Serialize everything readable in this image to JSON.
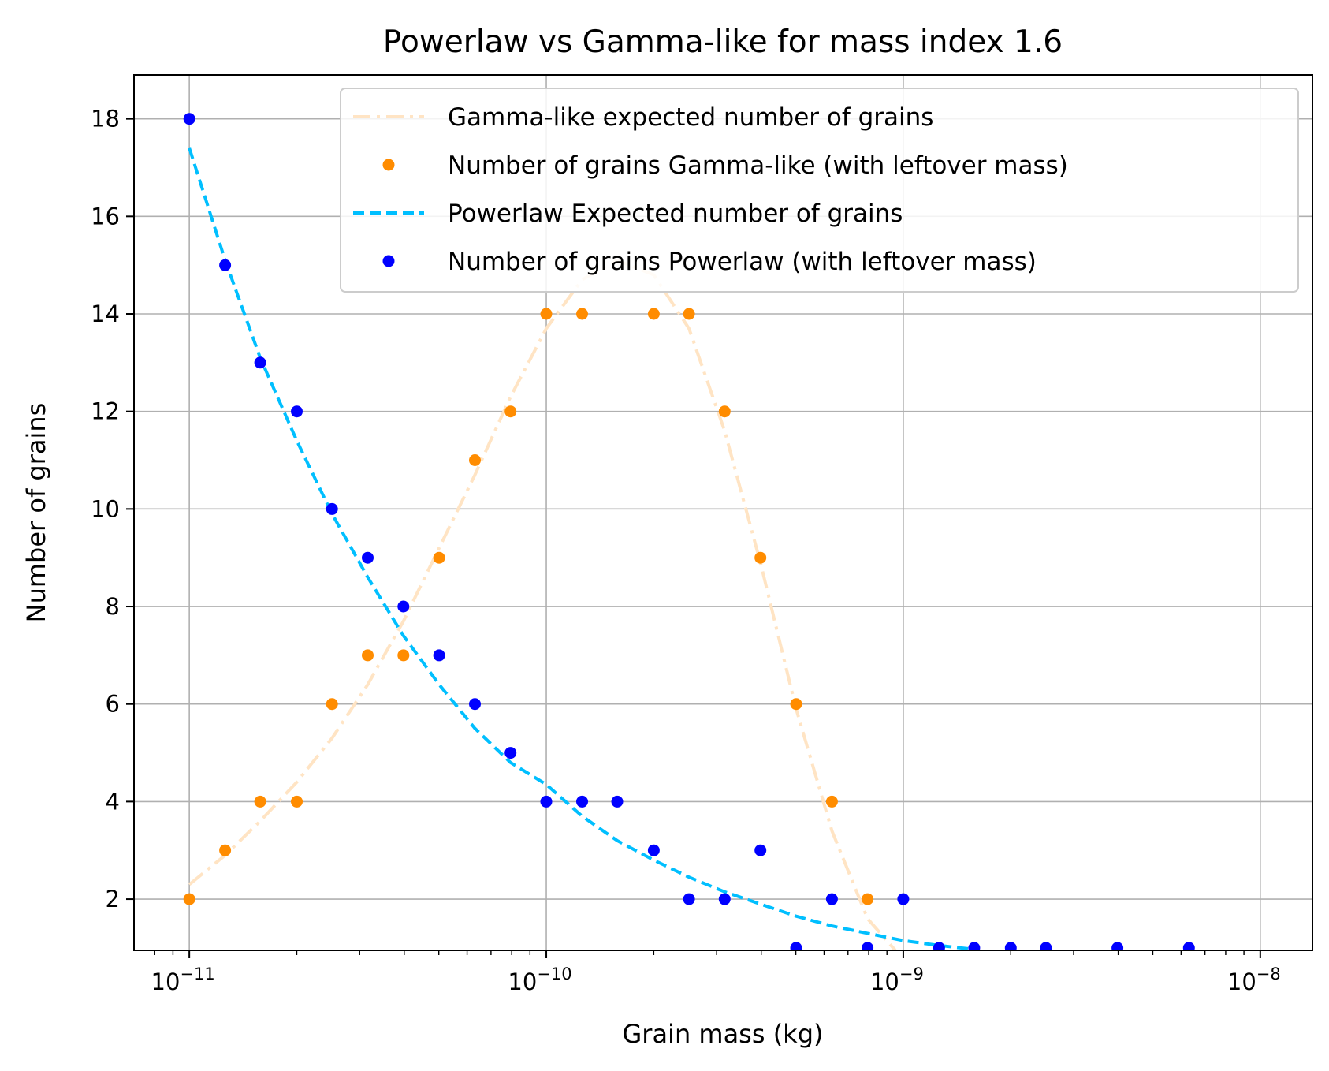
{
  "chart_data": {
    "type": "scatter+line",
    "title": "Powerlaw vs Gamma-like for mass index 1.6",
    "xlabel": "Grain mass (kg)",
    "ylabel": "Number of grains",
    "xscale": "log",
    "xlim": [
      7e-12,
      1.4e-08
    ],
    "ylim": [
      0.95,
      18.9
    ],
    "grid": true,
    "legend_position": "top-right",
    "x_ticks": [
      {
        "value": 1e-11,
        "base": "10",
        "exp": "−11"
      },
      {
        "value": 1e-10,
        "base": "10",
        "exp": "−10"
      },
      {
        "value": 1e-09,
        "base": "10",
        "exp": "−9"
      },
      {
        "value": 1e-08,
        "base": "10",
        "exp": "−8"
      }
    ],
    "y_ticks": [
      2,
      4,
      6,
      8,
      10,
      12,
      14,
      16,
      18
    ],
    "series": [
      {
        "name": "Gamma-like expected number of grains",
        "kind": "line",
        "style": "dashdot",
        "color": "#ffe4c4",
        "x": [
          1e-11,
          1.26e-11,
          1.58e-11,
          2e-11,
          2.51e-11,
          3.16e-11,
          3.98e-11,
          5.01e-11,
          6.31e-11,
          7.94e-11,
          1e-10,
          1.26e-10,
          1.58e-10,
          2e-10,
          2.51e-10,
          3.16e-10,
          3.98e-10,
          5.01e-10,
          6.31e-10,
          7.94e-10,
          9.5e-10
        ],
        "y": [
          2.3,
          2.9,
          3.6,
          4.4,
          5.3,
          6.4,
          7.7,
          9.2,
          10.7,
          12.3,
          13.7,
          14.7,
          15.1,
          14.8,
          13.7,
          11.6,
          8.9,
          5.9,
          3.4,
          1.6,
          0.95
        ]
      },
      {
        "name": "Number of grains Gamma-like (with leftover mass)",
        "kind": "scatter",
        "color": "#ff8c00",
        "x": [
          1e-11,
          1.26e-11,
          1.58e-11,
          2e-11,
          2.51e-11,
          3.16e-11,
          3.98e-11,
          5.01e-11,
          6.31e-11,
          7.94e-11,
          1e-10,
          1.26e-10,
          2e-10,
          2.51e-10,
          3.16e-10,
          3.98e-10,
          5.01e-10,
          6.31e-10,
          7.94e-10
        ],
        "y": [
          2,
          3,
          4,
          4,
          6,
          7,
          7,
          9,
          11,
          12,
          14,
          14,
          14,
          14,
          12,
          9,
          6,
          4,
          2
        ]
      },
      {
        "name": "Powerlaw Expected number of grains",
        "kind": "line",
        "style": "dashed",
        "color": "#00bfff",
        "x": [
          1e-11,
          1.26e-11,
          1.58e-11,
          2e-11,
          2.51e-11,
          3.16e-11,
          3.98e-11,
          5.01e-11,
          6.31e-11,
          7.94e-11,
          1e-10,
          1.26e-10,
          1.58e-10,
          2e-10,
          2.51e-10,
          3.16e-10,
          3.98e-10,
          5.01e-10,
          6.31e-10,
          7.94e-10,
          1e-09,
          1.26e-09,
          1.58e-09
        ],
        "y": [
          17.4,
          15.1,
          13.1,
          11.4,
          9.9,
          8.6,
          7.4,
          6.4,
          5.5,
          4.8,
          4.35,
          3.7,
          3.2,
          2.8,
          2.45,
          2.15,
          1.9,
          1.65,
          1.45,
          1.3,
          1.15,
          1.05,
          0.97
        ]
      },
      {
        "name": "Number of grains Powerlaw (with leftover mass)",
        "kind": "scatter",
        "color": "#0000ff",
        "x": [
          1e-11,
          1.26e-11,
          1.58e-11,
          2e-11,
          2.51e-11,
          3.16e-11,
          3.98e-11,
          5.01e-11,
          6.31e-11,
          7.94e-11,
          1e-10,
          1.26e-10,
          1.58e-10,
          2e-10,
          2.51e-10,
          3.16e-10,
          3.98e-10,
          5.01e-10,
          6.31e-10,
          7.94e-10,
          1e-09,
          1.26e-09,
          1.58e-09,
          2e-09,
          2.51e-09,
          3.98e-09,
          6.31e-09
        ],
        "y": [
          18,
          15,
          13,
          12,
          10,
          9,
          8,
          7,
          6,
          5,
          4,
          4,
          4,
          3,
          2,
          2,
          3,
          1,
          2,
          1,
          2,
          1,
          1,
          1,
          1,
          1,
          1
        ]
      }
    ],
    "legend": [
      {
        "label": "Gamma-like expected number of grains",
        "kind": "line",
        "style": "dashdot",
        "color": "#ffe4c4"
      },
      {
        "label": "Number of grains Gamma-like (with leftover mass)",
        "kind": "scatter",
        "color": "#ff8c00"
      },
      {
        "label": "Powerlaw Expected number of grains",
        "kind": "line",
        "style": "dashed",
        "color": "#00bfff"
      },
      {
        "label": "Number of grains Powerlaw (with leftover mass)",
        "kind": "scatter",
        "color": "#0000ff"
      }
    ]
  }
}
